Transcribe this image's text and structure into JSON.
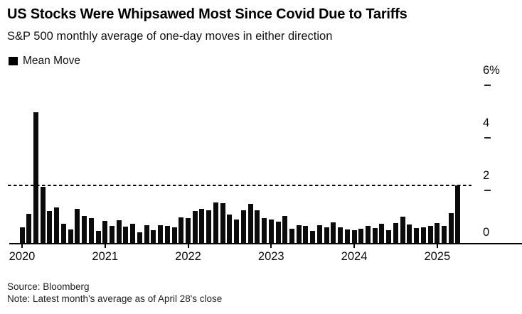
{
  "header": {
    "title": "US Stocks Were Whipsawed Most Since Covid Due to Tariffs",
    "subtitle": "S&P 500 monthly average of one-day moves in either direction"
  },
  "legend": {
    "label": "Mean Move",
    "swatch_color": "#000000"
  },
  "footer": {
    "source": "Source: Bloomberg",
    "note": "Note: Latest month's average as of April 28's close"
  },
  "colors": {
    "bar": "#0b0b0b",
    "axis": "#000000",
    "background": "#ffffff"
  },
  "chart_data": {
    "type": "bar",
    "title": "US Stocks Were Whipsawed Most Since Covid Due to Tariffs",
    "subtitle": "S&P 500 monthly average of one-day moves in either direction",
    "legend_entries": [
      "Mean Move"
    ],
    "legend_position": "top-left",
    "unit": "%",
    "grid": false,
    "y_axis_side": "right",
    "ylim": [
      0,
      6.6
    ],
    "y_ticks": [
      0,
      2,
      4,
      6
    ],
    "y_tick_labels": [
      "0",
      "2",
      "4",
      "6%"
    ],
    "x_tick_labels": [
      "2020",
      "2021",
      "2022",
      "2023",
      "2024",
      "2025"
    ],
    "reference_line": {
      "style": "dashed",
      "value": 2.19,
      "meaning": "latest month level"
    },
    "x": [
      "2020-01",
      "2020-02",
      "2020-03",
      "2020-04",
      "2020-05",
      "2020-06",
      "2020-07",
      "2020-08",
      "2020-09",
      "2020-10",
      "2020-11",
      "2020-12",
      "2021-01",
      "2021-02",
      "2021-03",
      "2021-04",
      "2021-05",
      "2021-06",
      "2021-07",
      "2021-08",
      "2021-09",
      "2021-10",
      "2021-11",
      "2021-12",
      "2022-01",
      "2022-02",
      "2022-03",
      "2022-04",
      "2022-05",
      "2022-06",
      "2022-07",
      "2022-08",
      "2022-09",
      "2022-10",
      "2022-11",
      "2022-12",
      "2023-01",
      "2023-02",
      "2023-03",
      "2023-04",
      "2023-05",
      "2023-06",
      "2023-07",
      "2023-08",
      "2023-09",
      "2023-10",
      "2023-11",
      "2023-12",
      "2024-01",
      "2024-02",
      "2024-03",
      "2024-04",
      "2024-05",
      "2024-06",
      "2024-07",
      "2024-08",
      "2024-09",
      "2024-10",
      "2024-11",
      "2024-12",
      "2025-01",
      "2025-02",
      "2025-03",
      "2025-04"
    ],
    "series": [
      {
        "name": "Mean Move",
        "values": [
          0.6,
          1.1,
          4.97,
          2.14,
          1.22,
          1.34,
          0.72,
          0.51,
          1.31,
          1.02,
          0.95,
          0.46,
          0.84,
          0.66,
          0.87,
          0.61,
          0.72,
          0.41,
          0.67,
          0.48,
          0.67,
          0.66,
          0.6,
          0.96,
          0.95,
          1.22,
          1.31,
          1.24,
          1.53,
          1.51,
          1.08,
          0.9,
          1.25,
          1.5,
          1.25,
          0.95,
          0.89,
          0.82,
          1.03,
          0.54,
          0.68,
          0.65,
          0.46,
          0.68,
          0.59,
          0.78,
          0.59,
          0.51,
          0.48,
          0.54,
          0.65,
          0.57,
          0.72,
          0.5,
          0.76,
          1.0,
          0.69,
          0.56,
          0.6,
          0.65,
          0.75,
          0.66,
          1.13,
          2.19
        ]
      }
    ]
  }
}
